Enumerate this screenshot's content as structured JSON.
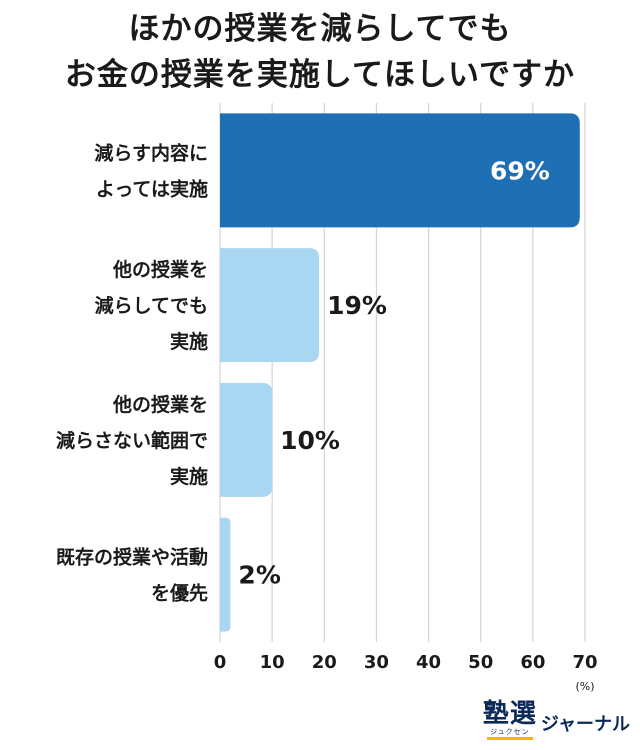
{
  "chart_data": {
    "type": "bar",
    "orientation": "horizontal",
    "title_lines": [
      "ほかの授業を減らしてでも",
      "お金の授業を実施してほしいですか"
    ],
    "categories": [
      [
        "減らす内容に",
        "よっては実施"
      ],
      [
        "他の授業を",
        "減らしてでも",
        "実施"
      ],
      [
        "他の授業を",
        "減らさない範囲で",
        "実施"
      ],
      [
        "既存の授業や活動",
        "を優先"
      ]
    ],
    "values": [
      69,
      19,
      10,
      2
    ],
    "value_labels": [
      "69%",
      "19%",
      "10%",
      "2%"
    ],
    "xlim": [
      0,
      70
    ],
    "xticks": [
      "0",
      "10",
      "20",
      "30",
      "40",
      "50",
      "60",
      "70"
    ],
    "unit_label": "(%)",
    "grid": true,
    "colors": {
      "highlight": "#1f6fb4",
      "normal": "#a9d6f0",
      "grid": "#d4d4d4",
      "highlight_label": "#ffffff",
      "label": "#1a1a1a"
    }
  },
  "footer": {
    "logo_kanji": "塾選",
    "logo_reading": "ジュクセン",
    "logo_word": "ジャーナル"
  }
}
